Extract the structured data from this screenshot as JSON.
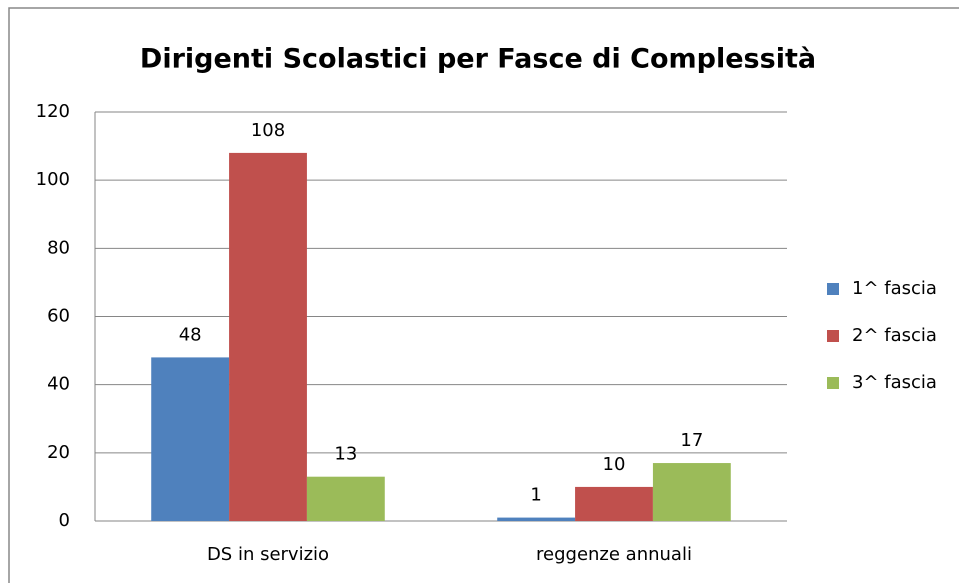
{
  "chart_data": {
    "type": "bar",
    "title": "Dirigenti Scolastici per Fasce di Complessità",
    "categories": [
      "DS in servizio",
      "reggenze annuali"
    ],
    "series": [
      {
        "name": "1^ fascia",
        "color": "#4f81bd",
        "values": [
          48,
          1
        ]
      },
      {
        "name": "2^ fascia",
        "color": "#c0504d",
        "values": [
          108,
          10
        ]
      },
      {
        "name": "3^ fascia",
        "color": "#9bbb59",
        "values": [
          13,
          17
        ]
      }
    ],
    "ylim": [
      0,
      120
    ],
    "yticks": [
      0,
      20,
      40,
      60,
      80,
      100,
      120
    ],
    "grid": true,
    "legend": "right"
  }
}
